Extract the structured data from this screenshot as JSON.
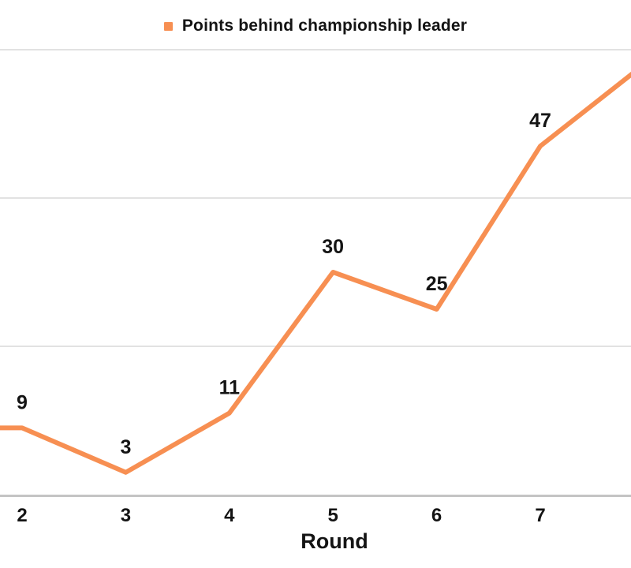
{
  "chart_data": {
    "type": "line",
    "title": "",
    "xlabel": "Round",
    "categories": [
      2,
      3,
      4,
      5,
      6,
      7
    ],
    "x_tick_labels": [
      "2",
      "3",
      "4",
      "5",
      "6",
      "7"
    ],
    "series": [
      {
        "name": "Points behind championship leader",
        "values": [
          9,
          3,
          11,
          30,
          25,
          47
        ]
      }
    ],
    "data_labels": [
      "9",
      "3",
      "11",
      "30",
      "25",
      "47"
    ],
    "y_axis": {
      "visible_range": [
        0,
        60
      ],
      "gridline_values": [
        20,
        40,
        60
      ],
      "tick_labels_visible": false
    },
    "grid": "horizontal",
    "legend_position": "top-center",
    "line_extends_offscreen": {
      "left_round": 1,
      "left_value_est": 9,
      "right_round": 8,
      "right_value_est": 58
    },
    "colors": {
      "line": "#F78F52",
      "gridline": "#E2E2E2",
      "axis_line": "#C4C4C4",
      "text": "#141414",
      "background": "#FFFFFF"
    }
  }
}
